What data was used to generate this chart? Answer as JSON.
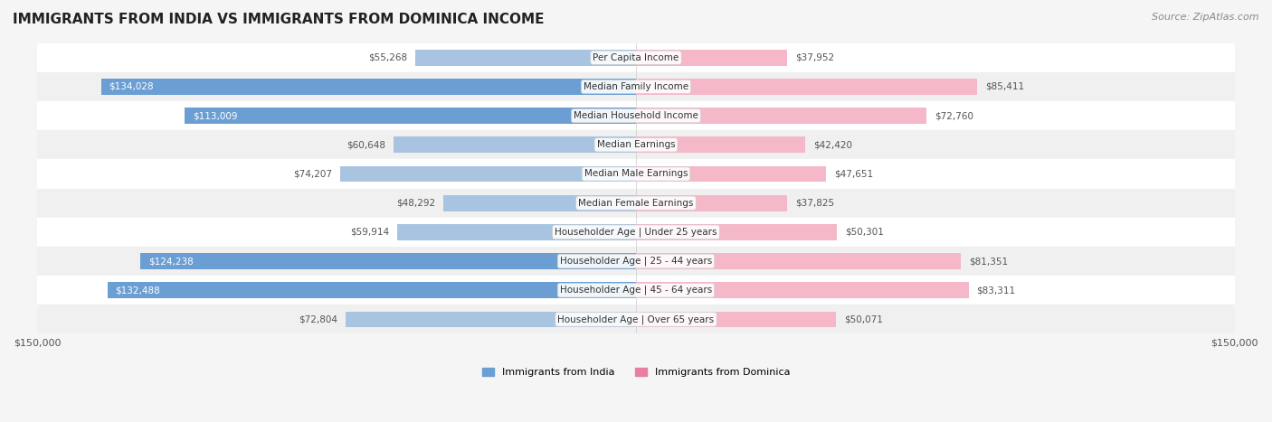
{
  "title": "IMMIGRANTS FROM INDIA VS IMMIGRANTS FROM DOMINICA INCOME",
  "source": "Source: ZipAtlas.com",
  "categories": [
    "Per Capita Income",
    "Median Family Income",
    "Median Household Income",
    "Median Earnings",
    "Median Male Earnings",
    "Median Female Earnings",
    "Householder Age | Under 25 years",
    "Householder Age | 25 - 44 years",
    "Householder Age | 45 - 64 years",
    "Householder Age | Over 65 years"
  ],
  "india_values": [
    55268,
    134028,
    113009,
    60648,
    74207,
    48292,
    59914,
    124238,
    132488,
    72804
  ],
  "dominica_values": [
    37952,
    85411,
    72760,
    42420,
    47651,
    37825,
    50301,
    81351,
    83311,
    50071
  ],
  "india_labels": [
    "$55,268",
    "$134,028",
    "$113,009",
    "$60,648",
    "$74,207",
    "$48,292",
    "$59,914",
    "$124,238",
    "$132,488",
    "$72,804"
  ],
  "dominica_labels": [
    "$37,952",
    "$85,411",
    "$72,760",
    "$42,420",
    "$47,651",
    "$37,825",
    "$50,301",
    "$81,351",
    "$83,311",
    "$50,071"
  ],
  "india_color_light": "#a8c4e0",
  "india_color_dark": "#6b9fd4",
  "dominica_color_light": "#f4b8c8",
  "dominica_color_dark": "#e87fa0",
  "xlim": 150000,
  "legend_india": "Immigrants from India",
  "legend_dominica": "Immigrants from Dominica",
  "india_text_threshold": 100000,
  "background_color": "#f5f5f5",
  "row_bg_colors": [
    "#ffffff",
    "#f0f0f0"
  ],
  "bar_height": 0.55
}
